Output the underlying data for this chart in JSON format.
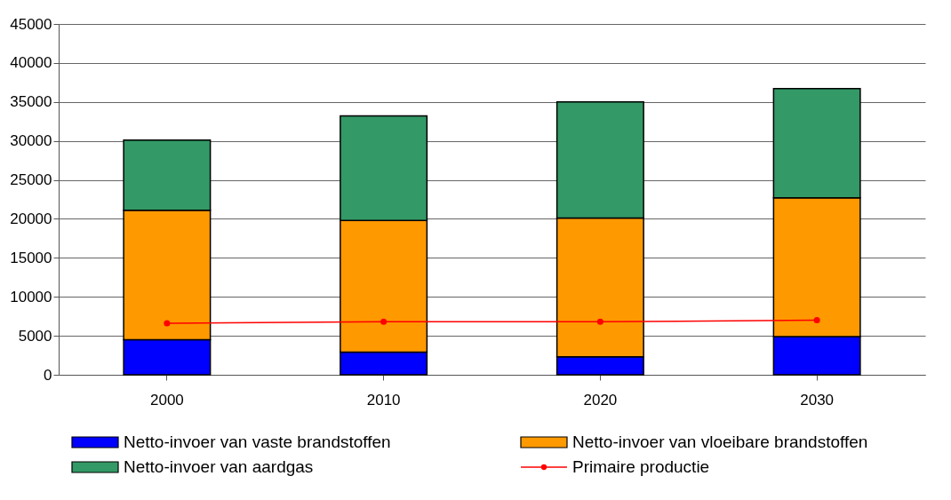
{
  "chart_data": {
    "type": "bar",
    "stacked": true,
    "categories": [
      "2000",
      "2010",
      "2020",
      "2030"
    ],
    "series": [
      {
        "name": "Netto-invoer van vaste brandstoffen",
        "color": "#0000ff",
        "values": [
          4500,
          2900,
          2300,
          4900
        ]
      },
      {
        "name": "Netto-invoer van vloeibare brandstoffen",
        "color": "#ff9900",
        "values": [
          16600,
          16900,
          17800,
          17800
        ]
      },
      {
        "name": "Netto-invoer van aardgas",
        "color": "#339966",
        "values": [
          9000,
          13400,
          14900,
          14000
        ]
      },
      {
        "name": "Primaire productie",
        "type": "line",
        "color": "#ff0000",
        "marker": "circle",
        "values": [
          6600,
          6800,
          6800,
          7000
        ]
      }
    ],
    "ylim": [
      0,
      45000
    ],
    "yticks": [
      0,
      5000,
      10000,
      15000,
      20000,
      25000,
      30000,
      35000,
      40000,
      45000
    ],
    "grid": "y",
    "legend": "bottom"
  }
}
